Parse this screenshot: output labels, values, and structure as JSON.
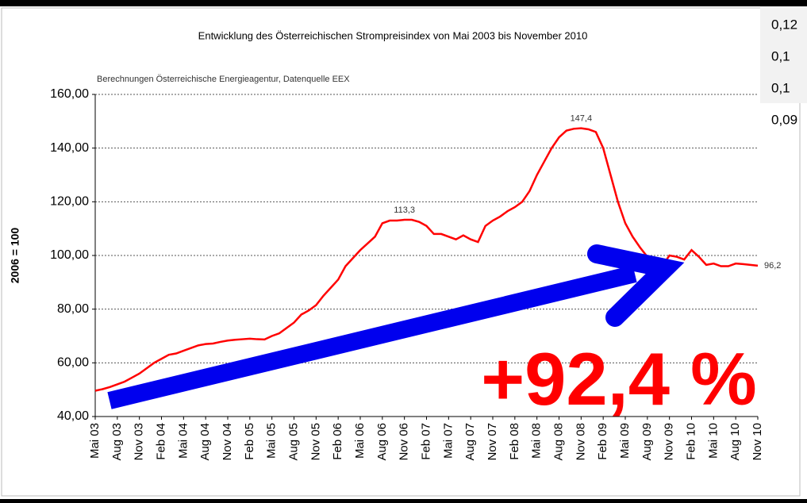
{
  "chart_data": {
    "type": "line",
    "title": "Entwicklung des Österreichischen Strompreisindex von Mai 2003 bis November 2010",
    "subtitle": "Berechnungen Österreichische Energieagentur, Datenquelle EEX",
    "y_label": "2006 = 100",
    "annotation": "+92,4 %",
    "side_values": [
      "0,12",
      "0,1",
      "0,1",
      "0,09"
    ],
    "color": "#ff0000",
    "grid": true,
    "ylim": [
      40,
      160
    ],
    "yticks": [
      {
        "value": 40,
        "label": "40,00"
      },
      {
        "value": 60,
        "label": "60,00"
      },
      {
        "value": 80,
        "label": "80,00"
      },
      {
        "value": 100,
        "label": "100,00"
      },
      {
        "value": 120,
        "label": "120,00"
      },
      {
        "value": 140,
        "label": "140,00"
      },
      {
        "value": 160,
        "label": "160,00"
      }
    ],
    "categories": [
      "Mai 03",
      null,
      null,
      "Aug 03",
      null,
      null,
      "Nov 03",
      null,
      null,
      "Feb 04",
      null,
      null,
      "Mai 04",
      null,
      null,
      "Aug 04",
      null,
      null,
      "Nov 04",
      null,
      null,
      "Feb 05",
      null,
      null,
      "Mai 05",
      null,
      null,
      "Aug 05",
      null,
      null,
      "Nov 05",
      null,
      null,
      "Feb 06",
      null,
      null,
      "Mai 06",
      null,
      null,
      "Aug 06",
      null,
      null,
      "Nov 06",
      null,
      null,
      "Feb 07",
      null,
      null,
      "Mai 07",
      null,
      null,
      "Aug 07",
      null,
      null,
      "Nov 07",
      null,
      null,
      "Feb 08",
      null,
      null,
      "Mai 08",
      null,
      null,
      "Aug 08",
      null,
      null,
      "Nov 08",
      null,
      null,
      "Feb 09",
      null,
      null,
      "Mai 09",
      null,
      null,
      "Aug 09",
      null,
      null,
      "Nov 09",
      null,
      null,
      "Feb 10",
      null,
      null,
      "Mai 10",
      null,
      null,
      "Aug 10",
      null,
      null,
      "Nov 10"
    ],
    "values": [
      49.6,
      50.2,
      51,
      52,
      53,
      54.5,
      56,
      58,
      60,
      61.5,
      63,
      63.5,
      64.5,
      65.5,
      66.5,
      67,
      67.2,
      67.8,
      68.3,
      68.6,
      68.8,
      69,
      68.8,
      68.7,
      70,
      71,
      73,
      75,
      78,
      79.5,
      81.5,
      85,
      88,
      91,
      96,
      99,
      102,
      104.5,
      107,
      112,
      113,
      113,
      113.3,
      113.3,
      112.5,
      111,
      108,
      108,
      107,
      106,
      107.5,
      106,
      105,
      111,
      113,
      114.5,
      116.5,
      118,
      120,
      124,
      130,
      135,
      140,
      144,
      146.5,
      147.2,
      147.4,
      147,
      146,
      140,
      130,
      120,
      112,
      107,
      103,
      99.5,
      97.5,
      96,
      100,
      99.5,
      98.5,
      102,
      99.5,
      96.5,
      97,
      96,
      96,
      97,
      96.8,
      96.5,
      96.2
    ],
    "value_labels": [
      null,
      null,
      null,
      null,
      null,
      null,
      null,
      null,
      null,
      null,
      null,
      null,
      null,
      null,
      null,
      null,
      null,
      null,
      null,
      null,
      null,
      null,
      null,
      null,
      null,
      null,
      null,
      null,
      null,
      null,
      null,
      null,
      null,
      null,
      null,
      null,
      null,
      null,
      null,
      null,
      null,
      null,
      "113,3",
      null,
      null,
      null,
      null,
      null,
      null,
      null,
      null,
      null,
      null,
      null,
      null,
      null,
      null,
      null,
      null,
      null,
      null,
      null,
      null,
      null,
      null,
      null,
      "147,4",
      null,
      null,
      null,
      null,
      null,
      null,
      null,
      null,
      null,
      null,
      null,
      null,
      null,
      null,
      null,
      null,
      null,
      null,
      null,
      null,
      null,
      null,
      null,
      "96,2"
    ]
  }
}
